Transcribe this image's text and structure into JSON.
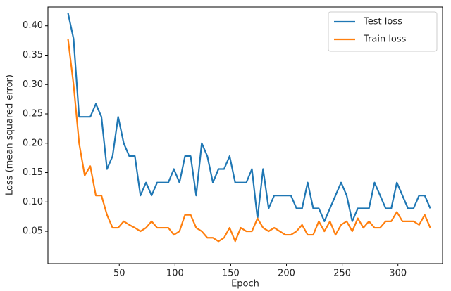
{
  "chart_data": {
    "type": "line",
    "xlabel": "Epoch",
    "ylabel": "Loss (mean squared error)",
    "x": [
      4,
      9,
      14,
      19,
      24,
      29,
      34,
      39,
      44,
      49,
      54,
      59,
      64,
      69,
      74,
      79,
      84,
      89,
      94,
      99,
      104,
      109,
      114,
      119,
      124,
      129,
      134,
      139,
      144,
      149,
      154,
      159,
      164,
      169,
      174,
      179,
      184,
      189,
      194,
      199,
      204,
      209,
      214,
      219,
      224,
      229,
      234,
      239,
      244,
      249,
      254,
      259,
      264,
      269,
      274,
      279,
      284,
      289,
      294,
      299,
      304,
      309,
      314,
      319,
      324,
      329
    ],
    "series": [
      {
        "name": "Test loss",
        "color": "#1f77b4",
        "values": [
          0.422,
          0.378,
          0.245,
          0.245,
          0.245,
          0.267,
          0.245,
          0.156,
          0.178,
          0.245,
          0.2,
          0.178,
          0.178,
          0.111,
          0.133,
          0.111,
          0.133,
          0.133,
          0.133,
          0.156,
          0.133,
          0.178,
          0.178,
          0.111,
          0.2,
          0.178,
          0.133,
          0.156,
          0.156,
          0.178,
          0.133,
          0.133,
          0.133,
          0.156,
          0.072,
          0.156,
          0.089,
          0.111,
          0.111,
          0.111,
          0.111,
          0.089,
          0.089,
          0.133,
          0.089,
          0.089,
          0.067,
          0.089,
          0.111,
          0.133,
          0.111,
          0.067,
          0.089,
          0.089,
          0.089,
          0.133,
          0.111,
          0.089,
          0.089,
          0.133,
          0.111,
          0.089,
          0.089,
          0.111,
          0.111,
          0.089
        ]
      },
      {
        "name": "Train loss",
        "color": "#ff7f0e",
        "values": [
          0.378,
          0.3,
          0.2,
          0.145,
          0.161,
          0.111,
          0.111,
          0.078,
          0.056,
          0.056,
          0.067,
          0.061,
          0.056,
          0.05,
          0.056,
          0.067,
          0.056,
          0.056,
          0.056,
          0.044,
          0.05,
          0.078,
          0.078,
          0.056,
          0.05,
          0.039,
          0.039,
          0.033,
          0.039,
          0.056,
          0.033,
          0.056,
          0.05,
          0.05,
          0.072,
          0.056,
          0.05,
          0.056,
          0.05,
          0.044,
          0.044,
          0.05,
          0.061,
          0.044,
          0.044,
          0.067,
          0.05,
          0.067,
          0.044,
          0.061,
          0.067,
          0.05,
          0.072,
          0.056,
          0.067,
          0.056,
          0.056,
          0.067,
          0.067,
          0.083,
          0.067,
          0.067,
          0.067,
          0.061,
          0.078,
          0.056
        ]
      }
    ],
    "xlim": [
      -14,
      340
    ],
    "ylim": [
      -0.005,
      0.432
    ],
    "xticks": [
      50,
      100,
      150,
      200,
      250,
      300
    ],
    "yticks": [
      {
        "value": 0.05,
        "label": "0.05"
      },
      {
        "value": 0.1,
        "label": "0.10"
      },
      {
        "value": 0.15,
        "label": "0.15"
      },
      {
        "value": 0.2,
        "label": "0.20"
      },
      {
        "value": 0.25,
        "label": "0.25"
      },
      {
        "value": 0.3,
        "label": "0.30"
      },
      {
        "value": 0.35,
        "label": "0.35"
      },
      {
        "value": 0.4,
        "label": "0.40"
      }
    ],
    "legend": "upper right"
  }
}
